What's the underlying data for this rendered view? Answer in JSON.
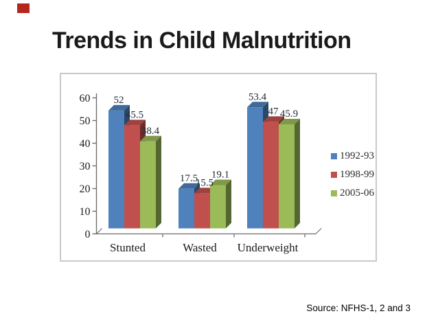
{
  "slide": {
    "title": "Trends in Child Malnutrition",
    "source_note": "Source: NFHS-1, 2 and 3",
    "corner_marker_color": "#b5271d"
  },
  "chart_data": {
    "type": "bar",
    "style": "3d-clustered-column",
    "title": "",
    "xlabel": "",
    "ylabel": "",
    "categories": [
      "Stunted",
      "Wasted",
      "Underweight"
    ],
    "series": [
      {
        "name": "1992-93",
        "color": "#4f81bd",
        "values": [
          52,
          17.5,
          53.4
        ]
      },
      {
        "name": "1998-99",
        "color": "#c0504d",
        "values": [
          45.5,
          15.5,
          47
        ]
      },
      {
        "name": "2005-06",
        "color": "#9bbb59",
        "values": [
          38.4,
          19.1,
          45.9
        ]
      }
    ],
    "data_labels": [
      [
        "52",
        "17.5",
        "53.4"
      ],
      [
        "45.5",
        "15.5",
        "47"
      ],
      [
        "38.4",
        "19.1",
        "45.9"
      ]
    ],
    "ylim": [
      0,
      60
    ],
    "yticks": [
      0,
      10,
      20,
      30,
      40,
      50,
      60
    ],
    "grid": false,
    "legend_position": "right",
    "axis_color": "#6e6e6e",
    "label_color": "#212b36",
    "tick_label_color": "#1a1a1a"
  }
}
